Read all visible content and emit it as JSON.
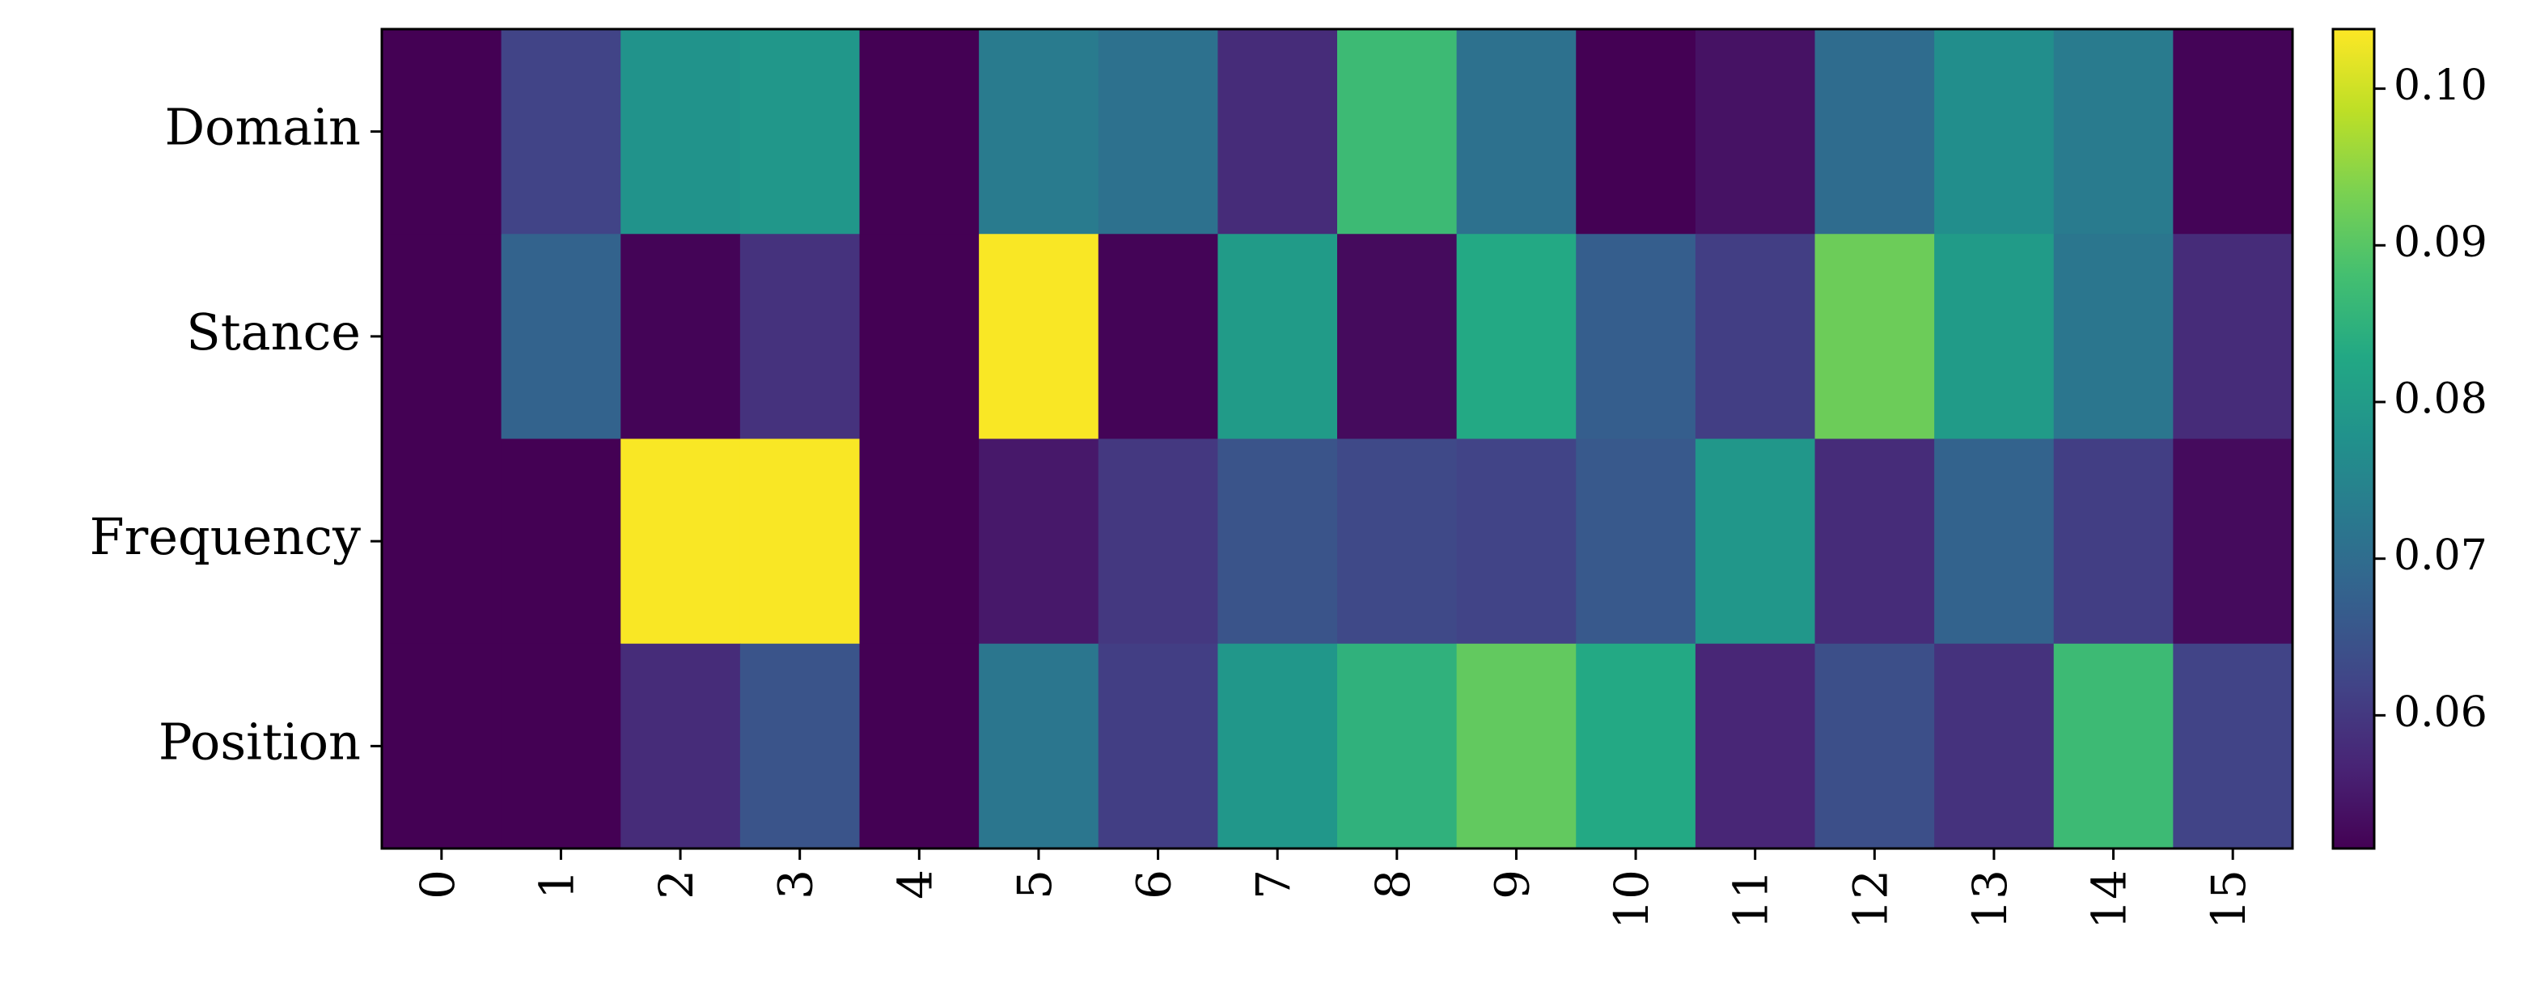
{
  "chart_data": {
    "type": "heatmap",
    "colormap": "viridis",
    "x_categories": [
      "0",
      "1",
      "2",
      "3",
      "4",
      "5",
      "6",
      "7",
      "8",
      "9",
      "10",
      "11",
      "12",
      "13",
      "14",
      "15"
    ],
    "y_categories": [
      "Domain",
      "Stance",
      "Frequency",
      "Position"
    ],
    "values": [
      [
        0.0515,
        0.062,
        0.078,
        0.079,
        0.0515,
        0.073,
        0.071,
        0.058,
        0.087,
        0.071,
        0.0515,
        0.054,
        0.07,
        0.077,
        0.073,
        0.052
      ],
      [
        0.0515,
        0.068,
        0.052,
        0.059,
        0.0515,
        0.1035,
        0.052,
        0.08,
        0.053,
        0.083,
        0.067,
        0.061,
        0.092,
        0.08,
        0.072,
        0.058
      ],
      [
        0.0515,
        0.0515,
        0.1035,
        0.1035,
        0.0515,
        0.055,
        0.06,
        0.065,
        0.063,
        0.062,
        0.066,
        0.079,
        0.058,
        0.068,
        0.061,
        0.053
      ],
      [
        0.0515,
        0.0515,
        0.058,
        0.065,
        0.0515,
        0.072,
        0.061,
        0.079,
        0.085,
        0.091,
        0.083,
        0.057,
        0.064,
        0.059,
        0.087,
        0.062
      ]
    ],
    "clim": [
      0.0515,
      0.1038
    ],
    "cticks": [
      0.06,
      0.07,
      0.08,
      0.09,
      {
        "value": 0.1,
        "label": "0.10"
      }
    ]
  }
}
